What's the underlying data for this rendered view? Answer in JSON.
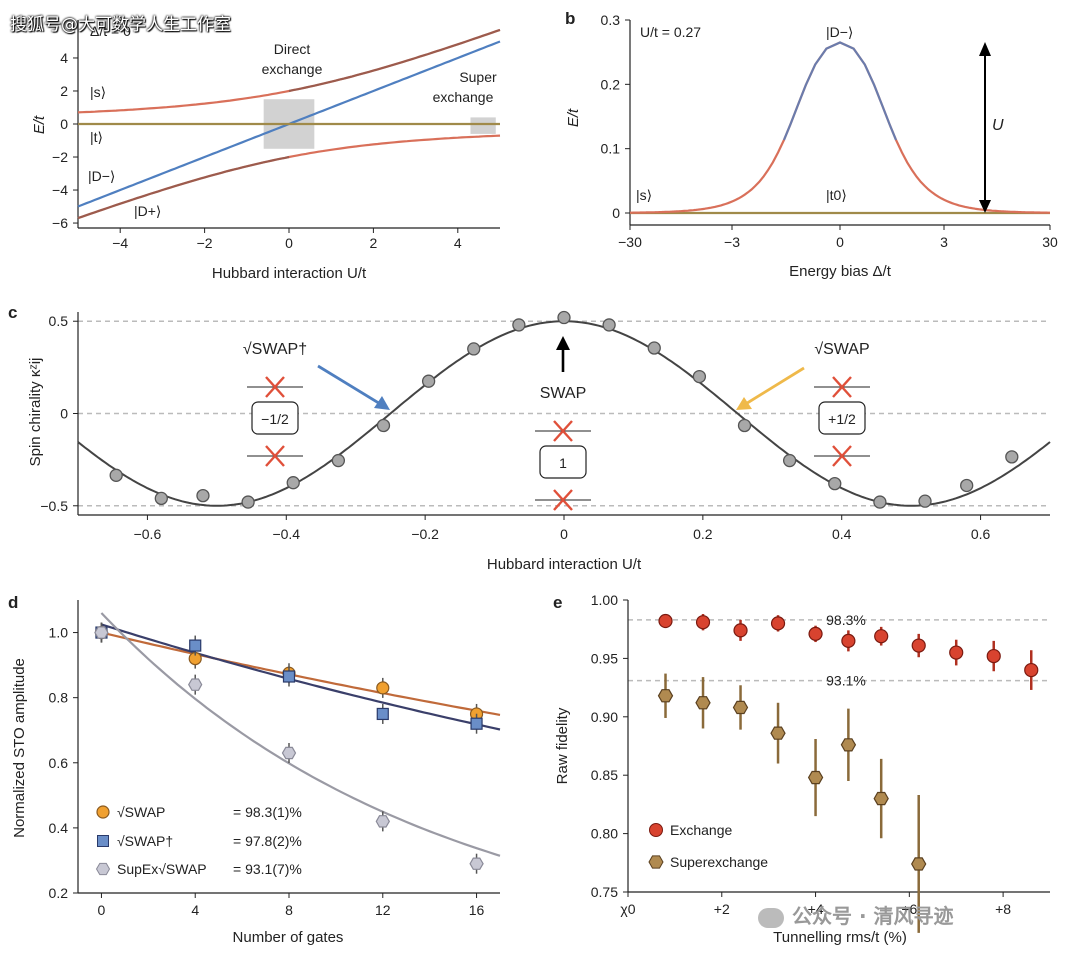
{
  "watermarks": {
    "top": "搜狐号@大可数学人生工作室",
    "bottom": "公众号 · 清风寻迹"
  },
  "colors": {
    "red": "#d9705a",
    "blue": "#4f7fc0",
    "dark": "#3a3a3a",
    "gold": "#a08a4a",
    "gray": "#9a9aa4",
    "orange": "#f0a030",
    "exchange": "#d8432f",
    "superexchange": "#8a6a3a",
    "navy": "#3a3f6a",
    "brown": "#c06a3a"
  },
  "chart_data": [
    {
      "panel": "a",
      "type": "line",
      "title": "Δ/t = 0",
      "xlabel": "Hubbard interaction U/t",
      "ylabel": "E/t",
      "xlim": [
        -5,
        5
      ],
      "ylim": [
        -6.3,
        6.3
      ],
      "xticks": [
        "−4",
        "−2",
        "0",
        "2",
        "4"
      ],
      "yticks": [
        "−6",
        "−4",
        "−2",
        "0",
        "2",
        "4"
      ],
      "series": [
        {
          "name": "|s⟩",
          "formula": "(U + sqrt(U^2 + 16))/2"
        },
        {
          "name": "|t⟩",
          "formula": "0"
        },
        {
          "name": "|D−⟩",
          "formula": "(U − sqrt(U^2 + 16))/2"
        },
        {
          "name": "|D+⟩",
          "formula": "U"
        }
      ],
      "labels": {
        "s": "|s⟩",
        "t": "|t⟩",
        "dminus": "|D−⟩",
        "dplus": "|D+⟩"
      },
      "annotations": {
        "direct": [
          "Direct",
          "exchange"
        ],
        "super": [
          "Super",
          "exchange"
        ]
      }
    },
    {
      "panel": "b",
      "type": "line",
      "title": "U/t = 0.27",
      "xlabel": "Energy bias Δ/t",
      "ylabel": "E/t",
      "ylim": [
        0,
        0.3
      ],
      "xticks": [
        "−30",
        "−3",
        "0",
        "3",
        "30"
      ],
      "yticks": [
        "0",
        "0.1",
        "0.2",
        "0.3"
      ],
      "series": [
        {
          "name": "|D−⟩",
          "peak": 0.265
        },
        {
          "name": "|t0⟩",
          "value": 0
        },
        {
          "name": "|s⟩",
          "value": 0
        }
      ],
      "labels": {
        "dminus": "|D−⟩",
        "t0": "|t0⟩",
        "s": "|s⟩"
      },
      "arrow_label": "U"
    },
    {
      "panel": "c",
      "type": "scatter",
      "xlabel": "Hubbard interaction U/t",
      "ylabel": "Spin chirality κᶻij",
      "xlim": [
        -0.7,
        0.7
      ],
      "ylim": [
        -0.55,
        0.55
      ],
      "xticks": [
        "−0.6",
        "−0.4",
        "−0.2",
        "0",
        "0.2",
        "0.4",
        "0.6"
      ],
      "yticks": [
        "−0.5",
        "0",
        "0.5"
      ],
      "fit": {
        "amplitude": 0.5,
        "period": 1.0
      },
      "x": [
        -0.645,
        -0.58,
        -0.52,
        -0.455,
        -0.39,
        -0.325,
        -0.26,
        -0.195,
        -0.13,
        -0.065,
        0,
        0.065,
        0.13,
        0.195,
        0.26,
        0.325,
        0.39,
        0.455,
        0.52,
        0.58,
        0.645
      ],
      "y": [
        -0.335,
        -0.46,
        -0.445,
        -0.48,
        -0.375,
        -0.255,
        -0.065,
        0.175,
        0.35,
        0.48,
        0.52,
        0.48,
        0.355,
        0.2,
        -0.065,
        -0.255,
        -0.38,
        -0.48,
        -0.475,
        -0.39,
        -0.235
      ],
      "gates": [
        {
          "name": "√SWAP†",
          "value": "−1/2"
        },
        {
          "name": "SWAP",
          "value": "1"
        },
        {
          "name": "√SWAP",
          "value": "+1/2"
        }
      ]
    },
    {
      "panel": "d",
      "type": "scatter",
      "xlabel": "Number of gates",
      "ylabel": "Normalized STO amplitude",
      "xlim": [
        -1,
        17
      ],
      "ylim": [
        0.2,
        1.1
      ],
      "xticks": [
        "0",
        "4",
        "8",
        "12",
        "16"
      ],
      "yticks": [
        "0.2",
        "0.4",
        "0.6",
        "0.8",
        "1.0"
      ],
      "x": [
        0,
        4,
        8,
        12,
        16
      ],
      "series": [
        {
          "name": "√SWAP",
          "fidelity": "= 98.3(1)%",
          "values": [
            1.0,
            0.92,
            0.875,
            0.83,
            0.75
          ],
          "fit_rate": 0.983
        },
        {
          "name": "√SWAP†",
          "fidelity": "= 97.8(2)%",
          "values": [
            1.0,
            0.96,
            0.865,
            0.75,
            0.72
          ],
          "fit_rate": 0.978
        },
        {
          "name": "SupEx√SWAP",
          "fidelity": "= 93.1(7)%",
          "values": [
            1.0,
            0.84,
            0.63,
            0.42,
            0.29
          ],
          "fit_rate": 0.931
        }
      ]
    },
    {
      "panel": "e",
      "type": "scatter",
      "xlabel": "Tunnelling rms/t (%)",
      "ylabel": "Raw fidelity",
      "xlim": [
        0,
        9
      ],
      "ylim": [
        0.75,
        1.0
      ],
      "xticks": [
        "χ0",
        "+2",
        "+4",
        "+6",
        "+8"
      ],
      "yticks": [
        "0.75",
        "0.80",
        "0.85",
        "0.90",
        "0.95",
        "1.00"
      ],
      "reference_lines": [
        {
          "value": 0.983,
          "label": "98.3%"
        },
        {
          "value": 0.931,
          "label": "93.1%"
        }
      ],
      "series": [
        {
          "name": "Exchange",
          "x": [
            0.8,
            1.6,
            2.4,
            3.2,
            4.0,
            4.7,
            5.4,
            6.2,
            7.0,
            7.8,
            8.6
          ],
          "values": [
            0.982,
            0.981,
            0.974,
            0.98,
            0.971,
            0.965,
            0.969,
            0.961,
            0.955,
            0.952,
            0.94
          ],
          "errors": [
            0.006,
            0.007,
            0.009,
            0.007,
            0.007,
            0.009,
            0.008,
            0.01,
            0.011,
            0.013,
            0.017
          ]
        },
        {
          "name": "Superexchange",
          "x": [
            0.8,
            1.6,
            2.4,
            3.2,
            4.0,
            4.7,
            5.4,
            6.2
          ],
          "values": [
            0.918,
            0.912,
            0.908,
            0.886,
            0.848,
            0.876,
            0.83,
            0.774
          ],
          "errors": [
            0.019,
            0.022,
            0.019,
            0.026,
            0.033,
            0.031,
            0.034,
            0.059
          ]
        }
      ]
    }
  ]
}
